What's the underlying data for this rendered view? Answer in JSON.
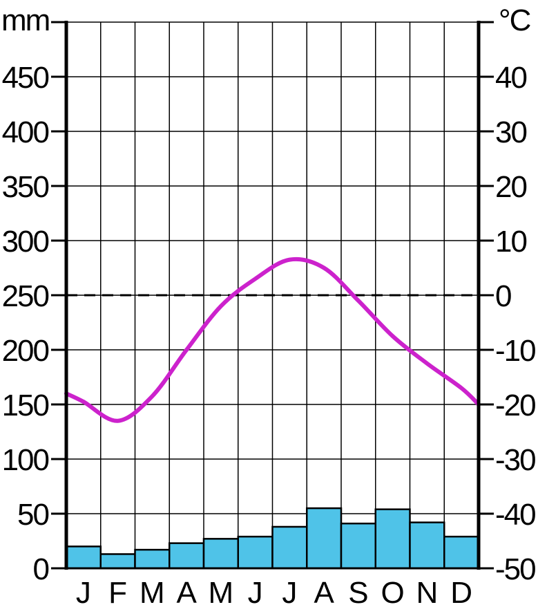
{
  "chart_data": {
    "type": "climate-diagram",
    "categories": [
      "J",
      "F",
      "M",
      "A",
      "M",
      "J",
      "J",
      "A",
      "S",
      "O",
      "N",
      "D"
    ],
    "precipitation": {
      "type": "bar",
      "unit": "mm",
      "values": [
        20,
        13,
        17,
        23,
        27,
        29,
        38,
        55,
        41,
        54,
        42,
        29
      ],
      "ylim": [
        0,
        500
      ],
      "ticks": [
        0,
        50,
        100,
        150,
        200,
        250,
        300,
        350,
        400,
        450
      ],
      "color": "#4fc3e8"
    },
    "temperature": {
      "type": "line",
      "unit": "°C",
      "values": [
        -19.5,
        -23,
        -18.5,
        -10,
        -2,
        3,
        6.5,
        5,
        -1,
        -7.5,
        -12.5,
        -17
      ],
      "ylim": [
        -50,
        50
      ],
      "ticks": [
        -50,
        -40,
        -30,
        -20,
        -10,
        0,
        10,
        20,
        30,
        40
      ],
      "color": "#cc22cc"
    },
    "zero_line": {
      "style": "dashed",
      "value": 0
    },
    "grid": true
  }
}
